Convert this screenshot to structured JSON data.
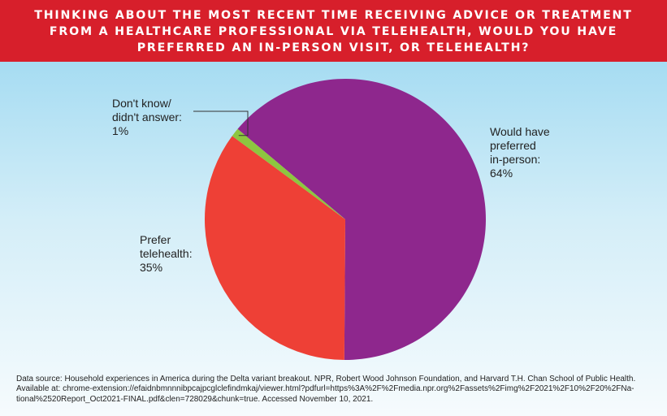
{
  "chart_data": {
    "type": "pie",
    "title": "THINKING ABOUT THE MOST RECENT TIME RECEIVING ADVICE OR TREATMENT FROM A HEALTHCARE PROFESSIONAL VIA TELEHEALTH, WOULD YOU HAVE PREFERRED AN IN-PERSON VISIT, OR TELEHEALTH?",
    "slices": [
      {
        "label_lines": [
          "Would have",
          "preferred",
          "in-person:",
          "64%"
        ],
        "value": 64,
        "color": "#8e278d"
      },
      {
        "label_lines": [
          "Prefer",
          "telehealth:",
          "35%"
        ],
        "value": 35,
        "color": "#ee4036"
      },
      {
        "label_lines": [
          "Don't know/",
          "didn't answer:",
          "1%"
        ],
        "value": 1,
        "color": "#8dc63f"
      }
    ],
    "legend": "none"
  },
  "colors": {
    "header_background": "#d71f2b",
    "header_text": "#ffffff",
    "background_top": "#a6dcf2",
    "background_bottom": "#f6fbfd"
  },
  "source": {
    "line1": "Data source: Household experiences in America during the Delta variant breakout. NPR, Robert Wood Johnson Foundation, and Harvard T.H. Chan School of Public Health.",
    "line2": "Available at:  chrome-extension://efaidnbmnnnibpcajpcglclefindmkaj/viewer.html?pdfurl=https%3A%2F%2Fmedia.npr.org%2Fassets%2Fimg%2F2021%2F10%2F20%2FNa-",
    "line3": "tional%2520Report_Oct2021-FINAL.pdf&clen=728029&chunk=true. Accessed November 10, 2021."
  }
}
